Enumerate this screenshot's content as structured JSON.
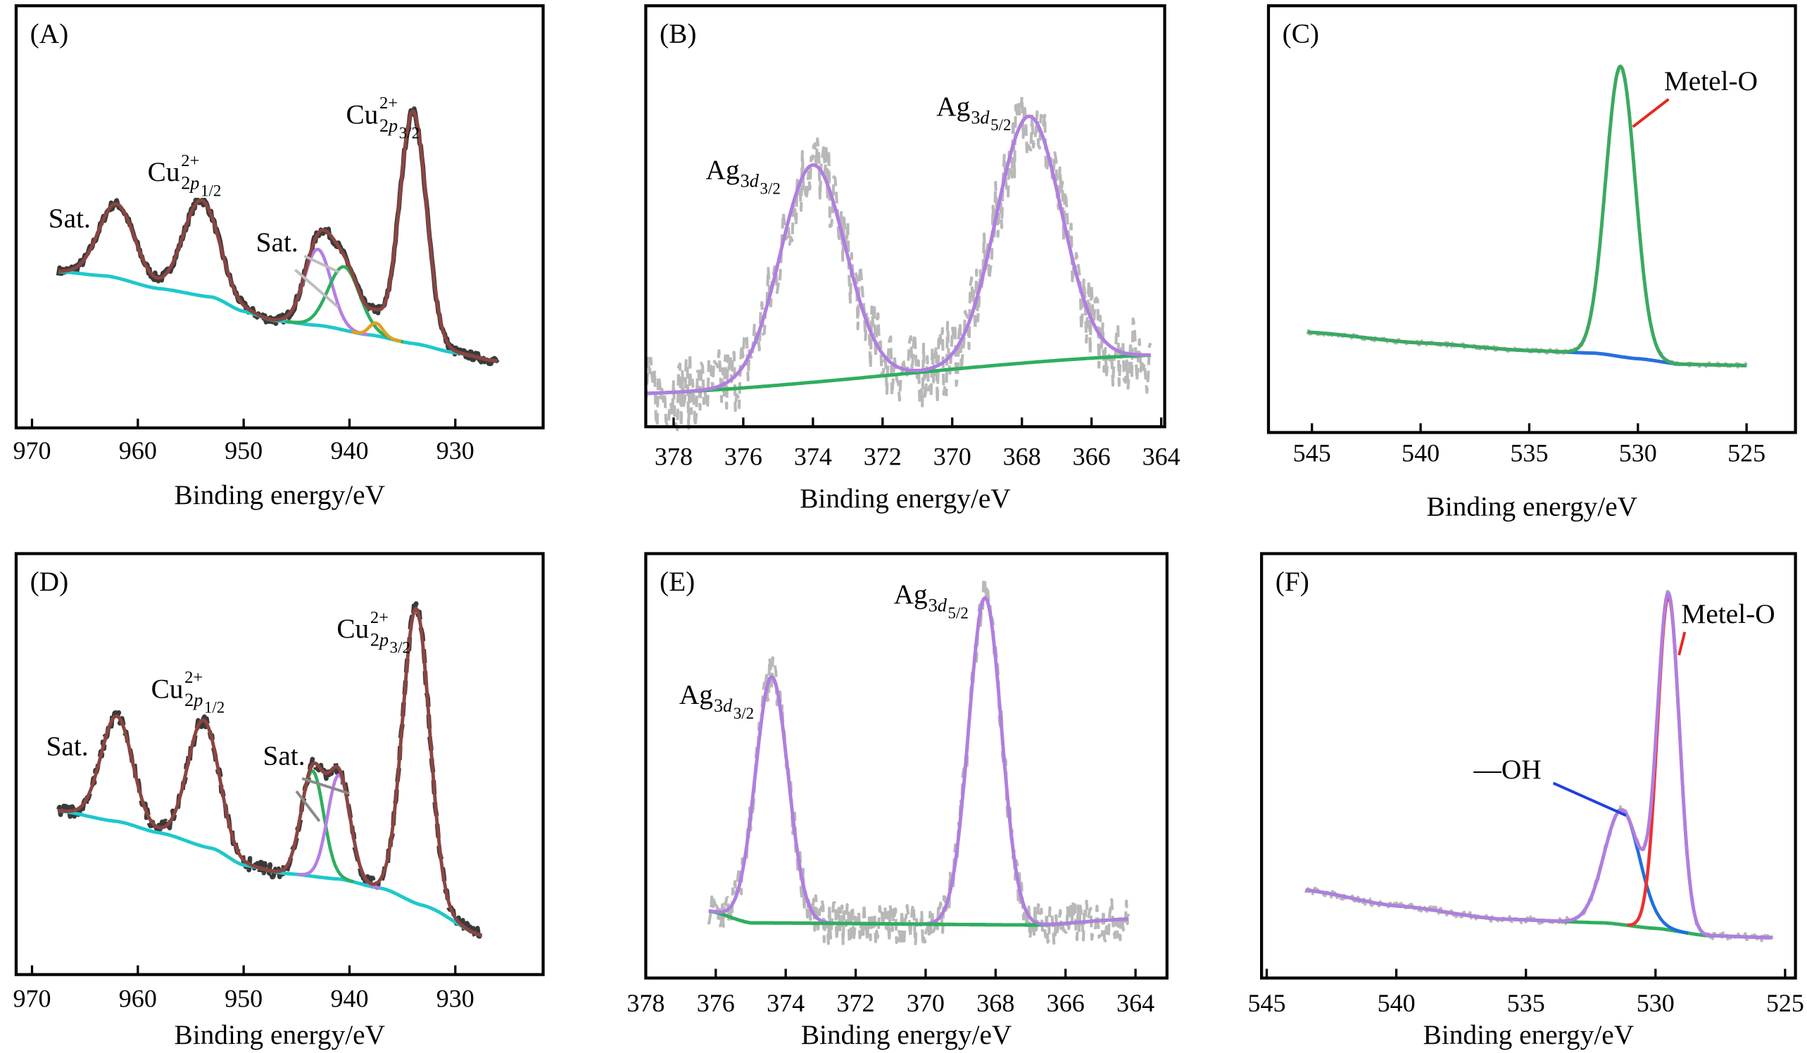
{
  "chart_data": [
    {
      "panel": "(A)",
      "type": "line",
      "xlabel": "Binding energy/eV",
      "x_reversed": true,
      "xlim": [
        971.5,
        921.7
      ],
      "ylim": [
        0,
        100
      ],
      "xticks": [
        970,
        960,
        950,
        940,
        930
      ],
      "x_range": [
        967.5,
        926
      ],
      "raw_style": "dark",
      "raw_color": "#3a3a3a",
      "noise": 1.0,
      "envelope_color": "#8b4540",
      "background_color": "#1ec8cc",
      "background": {
        "x": [
          967.5,
          963,
          958,
          953,
          950,
          947,
          943,
          938,
          934,
          930,
          926
        ],
        "y": [
          37,
          36,
          33,
          31,
          27.6,
          25.4,
          24.3,
          22,
          20,
          17.8,
          15.8
        ]
      },
      "components": [
        {
          "center": 962,
          "height": 17.5,
          "fwhm": 4.0,
          "color": null
        },
        {
          "center": 954,
          "height": 22.6,
          "fwhm": 4.0,
          "color": null
        },
        {
          "center": 943,
          "height": 18,
          "fwhm": 3.0,
          "color": "#b57ee6"
        },
        {
          "center": 940.5,
          "height": 15,
          "fwhm": 3.5,
          "color": "#2fae5f"
        },
        {
          "center": 937.5,
          "height": 3,
          "fwhm": 1.5,
          "color": "#e0a020"
        },
        {
          "center": 934,
          "height": 55,
          "fwhm": 3.0,
          "color": null
        }
      ],
      "annotations": [
        {
          "base": "Cu",
          "sup": "2+",
          "sub": "2",
          "sub_italic": "p",
          "subsub": "3/2"
        },
        {
          "base": "Cu",
          "sup": "2+",
          "sub": "2",
          "sub_italic": "p",
          "subsub": "1/2"
        },
        {
          "base": "Sat."
        },
        {
          "base": "Sat."
        }
      ]
    },
    {
      "panel": "(B)",
      "type": "line",
      "xlabel": "Binding energy/eV",
      "x_reversed": true,
      "xlim": [
        378.8,
        363.9
      ],
      "ylim": [
        0,
        100
      ],
      "xticks": [
        378,
        376,
        374,
        372,
        370,
        368,
        366,
        364
      ],
      "x_range": [
        378.8,
        364.3
      ],
      "raw_style": "light",
      "raw_color": "#b8b8b8",
      "noise": 9,
      "envelope_color": "#b07ee0",
      "background_color": "#2fae5f",
      "background": {
        "x": [
          378.8,
          364.3
        ],
        "y": [
          7.9,
          17
        ]
      },
      "components": [
        {
          "center": 374,
          "height": 51.6,
          "fwhm": 2.2,
          "color": null
        },
        {
          "center": 367.8,
          "height": 58.5,
          "fwhm": 2.2,
          "color": null
        }
      ],
      "annotations": [
        {
          "base": "Ag",
          "sub": "3",
          "sub_italic": "d",
          "subsub": "3/2"
        },
        {
          "base": "Ag",
          "sub": "3",
          "sub_italic": "d",
          "subsub": "5/2"
        }
      ]
    },
    {
      "panel": "(C)",
      "type": "line",
      "xlabel": "Binding energy/eV",
      "x_reversed": true,
      "xlim": [
        547.0,
        522.75
      ],
      "ylim": [
        0,
        100
      ],
      "xticks": [
        545,
        540,
        535,
        530,
        525
      ],
      "x_range": [
        545.2,
        525
      ],
      "raw_style": "light",
      "raw_color": "#b8b8b8",
      "noise": 0.5,
      "envelope_color": "#3aaa60",
      "background_color": "#2a6fdc",
      "background": {
        "x": [
          545.2,
          540,
          535,
          532,
          530,
          528,
          525
        ],
        "y": [
          23.5,
          21,
          19.2,
          18.6,
          17.3,
          16,
          15.7
        ]
      },
      "components": [
        {
          "center": 530.8,
          "height": 68,
          "fwhm": 1.6,
          "color": null
        }
      ],
      "annotations": [
        {
          "base": "Metel-O",
          "leader_color": "#e8261e"
        }
      ]
    },
    {
      "panel": "(D)",
      "type": "line",
      "xlabel": "Binding energy/eV",
      "x_reversed": true,
      "xlim": [
        971.5,
        921.7
      ],
      "ylim": [
        0,
        100
      ],
      "xticks": [
        970,
        960,
        950,
        940,
        930
      ],
      "x_range": [
        967.5,
        927.5
      ],
      "raw_style": "darkdash",
      "raw_color": "#3a3a3a",
      "noise": 1.5,
      "envelope_color": "#8b4540",
      "background_color": "#1ec8cc",
      "background": {
        "x": [
          967.5,
          962,
          958,
          953,
          950,
          946,
          941,
          937,
          933,
          927.5
        ],
        "y": [
          38.9,
          36.4,
          33.7,
          30,
          26,
          24,
          22.7,
          20.5,
          16.4,
          9.3
        ]
      },
      "components": [
        {
          "center": 962,
          "height": 25,
          "fwhm": 3.5,
          "color": null
        },
        {
          "center": 953.8,
          "height": 30,
          "fwhm": 3.5,
          "color": null
        },
        {
          "center": 943.5,
          "height": 25,
          "fwhm": 2.5,
          "color": "#2fae5f"
        },
        {
          "center": 941,
          "height": 24.7,
          "fwhm": 2.5,
          "color": "#b57ee6"
        },
        {
          "center": 933.7,
          "height": 70,
          "fwhm": 3.0,
          "color": null
        }
      ],
      "annotations": [
        {
          "base": "Cu",
          "sup": "2+",
          "sub": "2",
          "sub_italic": "p",
          "subsub": "3/2"
        },
        {
          "base": "Cu",
          "sup": "2+",
          "sub": "2",
          "sub_italic": "p",
          "subsub": "1/2"
        },
        {
          "base": "Sat."
        },
        {
          "base": "Sat."
        }
      ]
    },
    {
      "panel": "(E)",
      "type": "line",
      "xlabel": "Binding energy/eV",
      "x_reversed": true,
      "xlim": [
        378.0,
        363.1
      ],
      "ylim": [
        0,
        100
      ],
      "xticks": [
        378,
        376,
        374,
        372,
        370,
        368,
        366,
        364
      ],
      "x_range": [
        376.2,
        364.2
      ],
      "raw_style": "light",
      "raw_color": "#b8b8b8",
      "noise": 5,
      "envelope_color": "#b07ee0",
      "background_color": "#2fae5f",
      "background": {
        "x": [
          376.2,
          375,
          366.8,
          364.2
        ],
        "y": [
          15.8,
          13,
          12.5,
          13.9
        ]
      },
      "components": [
        {
          "center": 374.4,
          "height": 58,
          "fwhm": 1.1,
          "color": null
        },
        {
          "center": 368.3,
          "height": 77,
          "fwhm": 1.1,
          "color": null
        }
      ],
      "annotations": [
        {
          "base": "Ag",
          "sub": "3",
          "sub_italic": "d",
          "subsub": "3/2"
        },
        {
          "base": "Ag",
          "sub": "3",
          "sub_italic": "d",
          "subsub": "5/2"
        }
      ]
    },
    {
      "panel": "(F)",
      "type": "line",
      "xlabel": "Binding energy/eV",
      "x_reversed": true,
      "xlim": [
        545.2,
        524.6
      ],
      "ylim": [
        0,
        100
      ],
      "xticks": [
        545,
        540,
        535,
        530,
        525
      ],
      "x_range": [
        543.5,
        525.5
      ],
      "raw_style": "light",
      "raw_color": "#b8b8b8",
      "noise": 0.8,
      "envelope_color": "#b07ee0",
      "background_color": "#2fae5f",
      "background": {
        "x": [
          543.5,
          540,
          536,
          532,
          530,
          528,
          525.5
        ],
        "y": [
          20.7,
          17,
          13.9,
          13,
          11.7,
          10,
          9.5
        ]
      },
      "components": [
        {
          "center": 531.3,
          "height": 27,
          "fwhm": 1.6,
          "color": "#1f6fe0"
        },
        {
          "center": 529.5,
          "height": 78.5,
          "fwhm": 1.0,
          "color": "#ee3030"
        }
      ],
      "annotations": [
        {
          "base": "Metel-O",
          "leader_color": "#e8261e"
        },
        {
          "base": "—OH",
          "leader_color": "#1f3fe0"
        }
      ]
    }
  ]
}
